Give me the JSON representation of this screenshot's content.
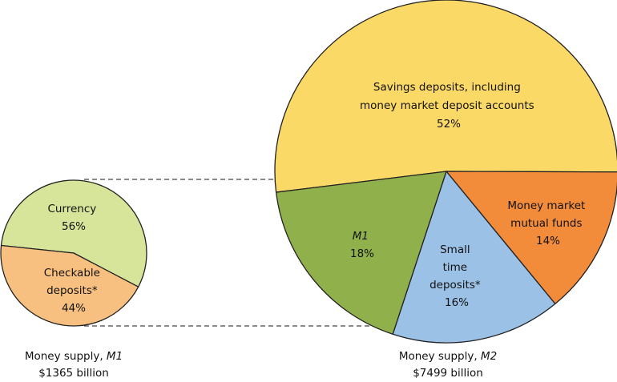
{
  "chart_data": [
    {
      "type": "pie",
      "name": "M1",
      "caption": {
        "line1": "Money supply,",
        "symbol": "M1",
        "line2": "$1365 billion"
      },
      "total": 1365,
      "total_unit": "billion",
      "slices": [
        {
          "key": "currency",
          "label": [
            "Currency",
            "56%"
          ],
          "value": 56,
          "color": "#d6e59a"
        },
        {
          "key": "checkable",
          "label": [
            "Checkable",
            "deposits*",
            "44%"
          ],
          "value": 44,
          "color": "#f7c080"
        }
      ]
    },
    {
      "type": "pie",
      "name": "M2",
      "caption": {
        "line1": "Money supply,",
        "symbol": "M2",
        "line2": "$7499 billion"
      },
      "total": 7499,
      "total_unit": "billion",
      "slices": [
        {
          "key": "savings",
          "label": [
            "Savings deposits, including",
            "money market deposit accounts",
            "52%"
          ],
          "value": 52,
          "color": "#fbd966"
        },
        {
          "key": "mmmf",
          "label": [
            "Money market",
            "mutual funds",
            "14%"
          ],
          "value": 14,
          "color": "#f28c3b"
        },
        {
          "key": "small_time",
          "label": [
            "Small",
            "time",
            "deposits*",
            "16%"
          ],
          "value": 16,
          "color": "#9bc2e6"
        },
        {
          "key": "m1",
          "label": [
            "M1",
            "18%"
          ],
          "value": 18,
          "color": "#8fb04a"
        }
      ]
    }
  ]
}
